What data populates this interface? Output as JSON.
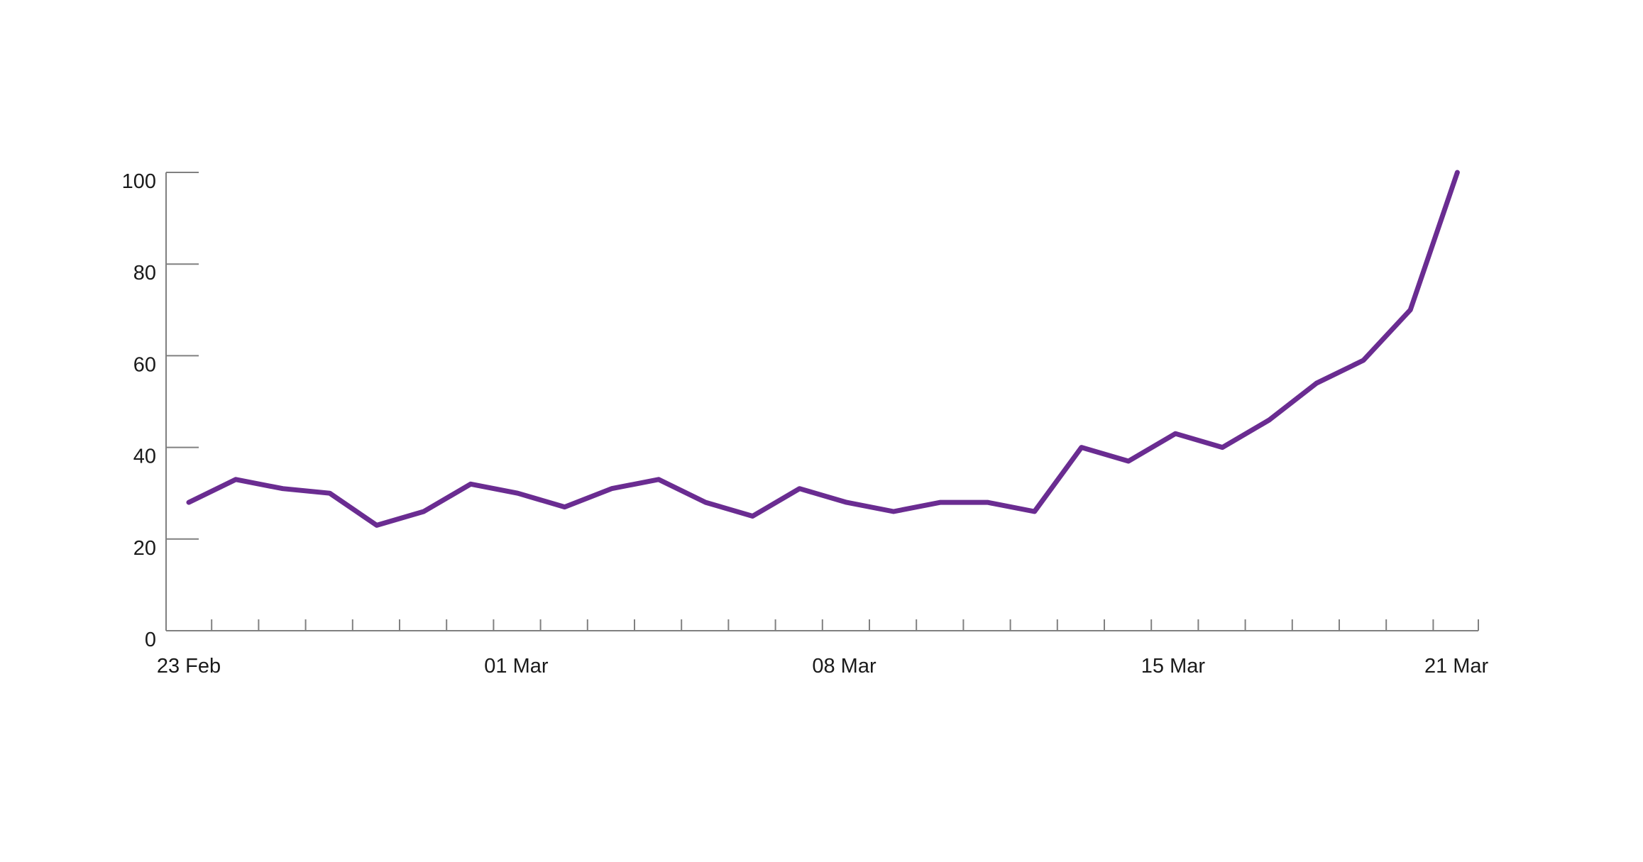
{
  "chart_data": {
    "type": "line",
    "title": "",
    "xlabel": "",
    "ylabel": "",
    "x": [
      "2020-02-23",
      "2020-02-24",
      "2020-02-25",
      "2020-02-26",
      "2020-02-27",
      "2020-02-28",
      "2020-02-29",
      "2020-03-01",
      "2020-03-02",
      "2020-03-03",
      "2020-03-04",
      "2020-03-05",
      "2020-03-06",
      "2020-03-07",
      "2020-03-08",
      "2020-03-09",
      "2020-03-10",
      "2020-03-11",
      "2020-03-12",
      "2020-03-13",
      "2020-03-14",
      "2020-03-15",
      "2020-03-16",
      "2020-03-17",
      "2020-03-18",
      "2020-03-19",
      "2020-03-20",
      "2020-03-21"
    ],
    "series": [
      {
        "values": [
          28,
          33,
          31,
          30,
          23,
          26,
          32,
          30,
          27,
          31,
          33,
          28,
          25,
          31,
          28,
          26,
          28,
          28,
          26,
          40,
          37,
          43,
          40,
          46,
          54,
          59,
          70,
          100
        ]
      }
    ],
    "x_tick_labels": [
      "23 Feb",
      "01 Mar",
      "08 Mar",
      "15 Mar",
      "21 Mar"
    ],
    "y_tick_labels": [
      "0",
      "20",
      "40",
      "60",
      "80",
      "100"
    ],
    "ylim": [
      0,
      100
    ],
    "grid": false,
    "legend": "none",
    "colors": {
      "line": "#6a2c91",
      "axis": "#808080",
      "text": "#1a1a1a"
    }
  }
}
